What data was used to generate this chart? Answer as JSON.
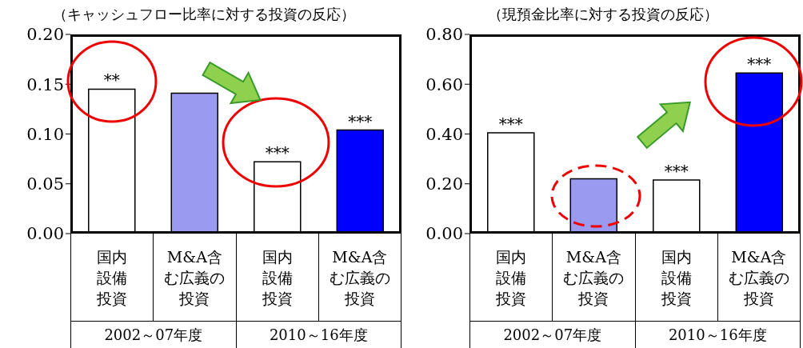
{
  "chart_data": [
    {
      "type": "bar",
      "title": "（キャッシュフロー比率に対する投資の反応）",
      "categories": [
        "国内設備投資",
        "M&A含む広義の投資",
        "国内設備投資",
        "M&A含む広義の投資"
      ],
      "values": [
        0.145,
        0.141,
        0.072,
        0.104
      ],
      "colors": [
        "#ffffff",
        "#9a9af0",
        "#ffffff",
        "#0000ff"
      ],
      "value_labels": [
        "**",
        null,
        "***",
        "***"
      ],
      "ylim": [
        0,
        0.2
      ],
      "yticks": [
        {
          "value": 0,
          "label": "0.00"
        },
        {
          "value": 0.05,
          "label": "0.05"
        },
        {
          "value": 0.1,
          "label": "0.10"
        },
        {
          "value": 0.15,
          "label": "0.15"
        },
        {
          "value": 0.2,
          "label": "0.20"
        }
      ],
      "annotations": [
        "2002～07年度",
        "2010～16年度"
      ]
    },
    {
      "type": "bar",
      "title": "（現預金比率に対する投資の反応）",
      "categories": [
        "国内設備投資",
        "M&A含む広義の投資",
        "国内設備投資",
        "M&A含む広義の投資"
      ],
      "values": [
        0.405,
        0.22,
        0.215,
        0.645
      ],
      "colors": [
        "#ffffff",
        "#9a9af0",
        "#ffffff",
        "#0000ff"
      ],
      "value_labels": [
        "***",
        null,
        "***",
        "***"
      ],
      "ylim": [
        0,
        0.8
      ],
      "yticks": [
        {
          "value": 0,
          "label": "0.00"
        },
        {
          "value": 0.2,
          "label": "0.20"
        },
        {
          "value": 0.4,
          "label": "0.40"
        },
        {
          "value": 0.6,
          "label": "0.60"
        },
        {
          "value": 0.8,
          "label": "0.80"
        }
      ],
      "annotations": [
        "2002～07年度",
        "2010～16年度"
      ]
    }
  ]
}
